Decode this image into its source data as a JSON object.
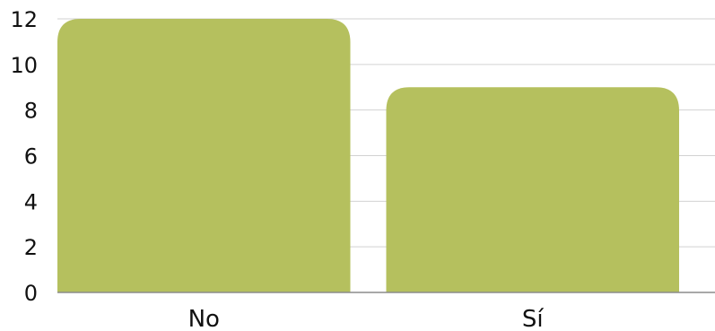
{
  "chart_data": {
    "type": "bar",
    "title": "",
    "xlabel": "",
    "ylabel": "",
    "categories": [
      "No",
      "Sí"
    ],
    "values": [
      12,
      9
    ],
    "ylim": [
      0,
      12
    ],
    "yticks": [
      0,
      2,
      4,
      6,
      8,
      10,
      12
    ],
    "grid": true,
    "legend": "none",
    "colors": {
      "bar": "#b5c05e",
      "grid": "#d2d2d2",
      "axis": "#8c8c8c",
      "text": "#111111"
    }
  }
}
